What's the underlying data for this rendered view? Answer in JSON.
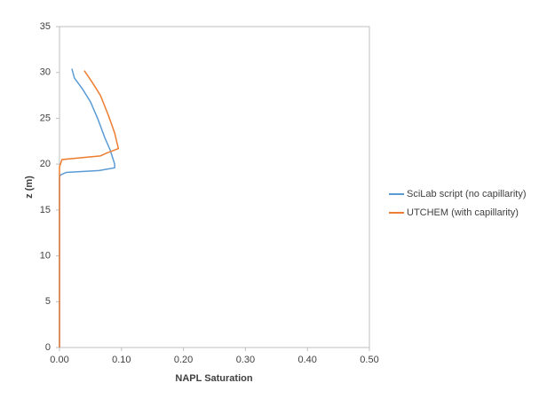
{
  "chart_data": {
    "type": "line",
    "x_label": "NAPL Saturation",
    "y_label": "z (m)",
    "xlim": [
      0,
      0.5
    ],
    "ylim": [
      0,
      35
    ],
    "xticks": [
      {
        "value": 0,
        "label": "0.00"
      },
      {
        "value": 0.1,
        "label": "0.10"
      },
      {
        "value": 0.2,
        "label": "0.20"
      },
      {
        "value": 0.3,
        "label": "0.30"
      },
      {
        "value": 0.4,
        "label": "0.40"
      },
      {
        "value": 0.5,
        "label": "0.50"
      }
    ],
    "yticks": [
      0,
      5,
      10,
      15,
      20,
      25,
      30,
      35
    ],
    "grid": false,
    "legend": "right",
    "series": [
      {
        "name": "SciLab script (no capillarity)",
        "color": "#5b9bd5",
        "x": [
          0.02,
          0.024,
          0.037,
          0.05,
          0.062,
          0.073,
          0.082,
          0.089,
          0.089,
          0.064,
          0.011,
          0.001,
          0,
          0
        ],
        "values": [
          30.4,
          29.4,
          28.2,
          26.8,
          24.9,
          22.9,
          21.5,
          20.0,
          19.6,
          19.3,
          19.1,
          18.8,
          18.5,
          0
        ]
      },
      {
        "name": "UTCHEM (with capillarity)",
        "color": "#ed7d31",
        "x": [
          0.04,
          0.053,
          0.066,
          0.079,
          0.089,
          0.095,
          0.076,
          0.066,
          0.004,
          0,
          0
        ],
        "values": [
          30.2,
          28.9,
          27.5,
          25.3,
          23.4,
          21.7,
          21.2,
          20.9,
          20.5,
          19.7,
          0
        ]
      }
    ]
  }
}
